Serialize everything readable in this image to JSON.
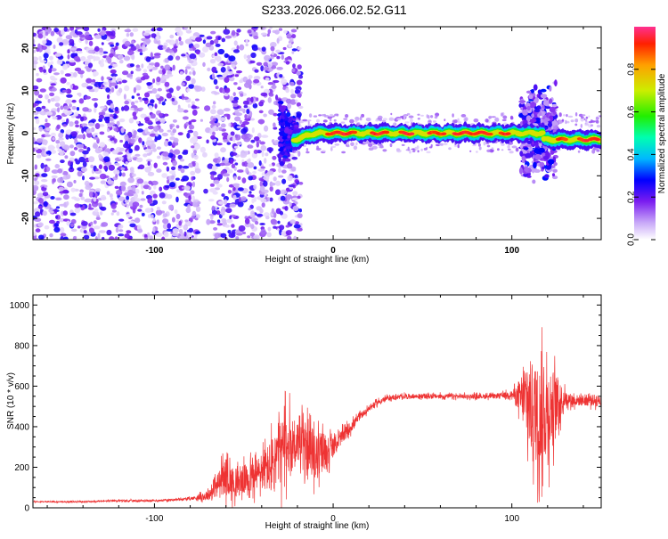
{
  "title": "S233.2026.066.02.52.G11",
  "chart_data": [
    {
      "type": "heatmap",
      "name": "spectrogram",
      "xlabel": "Height of straight line (km)",
      "ylabel": "Frequency (Hz)",
      "xlim": [
        -168,
        150
      ],
      "ylim": [
        -25,
        25
      ],
      "xticks": [
        -100,
        0,
        100
      ],
      "yticks": [
        -20,
        -10,
        0,
        10,
        20
      ],
      "colorbar": {
        "label": "Normalized spectral amplitude",
        "range": [
          0,
          1
        ],
        "ticks": [
          0.0,
          0.2,
          0.4,
          0.6,
          0.8
        ]
      },
      "features": [
        {
          "description": "scattered noise",
          "x_range": [
            -168,
            -28
          ],
          "amplitude": 0.15
        },
        {
          "description": "signal band",
          "x_range": [
            -25,
            150
          ],
          "frequency_center": 0,
          "peak_amplitude": 1.0
        },
        {
          "description": "noise burst",
          "x_range": [
            105,
            125
          ],
          "frequency_spread": 12
        }
      ]
    },
    {
      "type": "line",
      "name": "snr",
      "xlabel": "Height of straight line (km)",
      "ylabel": "SNR (10 * v/v)",
      "xlim": [
        -168,
        150
      ],
      "ylim": [
        0,
        1050
      ],
      "xticks": [
        -100,
        0,
        100
      ],
      "yticks": [
        0,
        200,
        400,
        600,
        800,
        1000
      ],
      "color": "#ee3333",
      "x": [
        -168,
        -140,
        -120,
        -100,
        -80,
        -70,
        -65,
        -60,
        -55,
        -50,
        -45,
        -40,
        -35,
        -30,
        -25,
        -20,
        -15,
        -10,
        -5,
        0,
        5,
        10,
        15,
        20,
        25,
        30,
        40,
        50,
        60,
        70,
        80,
        90,
        100,
        105,
        110,
        115,
        120,
        125,
        130,
        135,
        140,
        145,
        150
      ],
      "y": [
        30,
        30,
        35,
        35,
        45,
        60,
        110,
        160,
        110,
        140,
        150,
        180,
        200,
        270,
        310,
        330,
        300,
        250,
        280,
        300,
        350,
        400,
        450,
        490,
        520,
        540,
        550,
        550,
        550,
        550,
        550,
        550,
        560,
        540,
        500,
        450,
        480,
        520,
        540,
        530,
        530,
        530,
        530
      ],
      "noise_amp": [
        5,
        5,
        8,
        8,
        10,
        40,
        100,
        160,
        110,
        130,
        140,
        160,
        240,
        300,
        280,
        200,
        200,
        200,
        180,
        80,
        60,
        50,
        30,
        25,
        25,
        20,
        20,
        20,
        20,
        20,
        20,
        20,
        30,
        150,
        420,
        450,
        420,
        250,
        60,
        50,
        50,
        50,
        50
      ]
    }
  ]
}
